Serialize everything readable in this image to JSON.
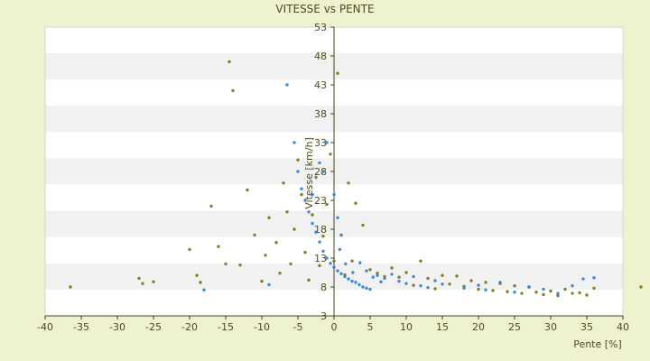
{
  "chart_data": {
    "type": "scatter",
    "title": "VITESSE vs PENTE",
    "xlabel": "Pente [%]",
    "ylabel": "Vitesse [km/h]",
    "xlim": [
      -40,
      40
    ],
    "ylim": [
      3,
      53
    ],
    "x_ticks": [
      "-40",
      "-35",
      "-30",
      "-25",
      "-20",
      "-15",
      "-10",
      "-5",
      "0",
      "5",
      "10",
      "15",
      "20",
      "25",
      "30",
      "35",
      "40"
    ],
    "y_ticks": [
      "3",
      "8",
      "13",
      "18",
      "23",
      "28",
      "33",
      "38",
      "43",
      "48",
      "53"
    ],
    "grid": "horizontal alternating bands",
    "legend": "none",
    "colors": {
      "series_1": "#7a7a12",
      "series_2": "#2f86d8",
      "background": "#eef2cf",
      "plot_bg": "#ffffff",
      "band_bg": "#f1f1f1"
    },
    "series": [
      {
        "color": "#7a7a12",
        "points": [
          [
            -36.5,
            8.0
          ],
          [
            -27.0,
            9.5
          ],
          [
            -26.5,
            8.6
          ],
          [
            -25.0,
            8.9
          ],
          [
            -20.0,
            14.5
          ],
          [
            -19.0,
            10.0
          ],
          [
            -18.5,
            8.8
          ],
          [
            -17.0,
            22.0
          ],
          [
            -16.0,
            15.0
          ],
          [
            -15.0,
            12.0
          ],
          [
            -14.5,
            47.0
          ],
          [
            -14.0,
            42.0
          ],
          [
            -13.0,
            11.8
          ],
          [
            -12.0,
            24.8
          ],
          [
            -11.0,
            17.0
          ],
          [
            -10.0,
            9.0
          ],
          [
            -9.5,
            13.5
          ],
          [
            -9.0,
            20.0
          ],
          [
            -8.0,
            15.7
          ],
          [
            -7.5,
            10.4
          ],
          [
            -7.0,
            26.0
          ],
          [
            -6.5,
            21.0
          ],
          [
            -6.0,
            12.0
          ],
          [
            -5.5,
            18.0
          ],
          [
            -5.0,
            30.0
          ],
          [
            -4.5,
            24.0
          ],
          [
            -4.0,
            14.0
          ],
          [
            -3.5,
            9.2
          ],
          [
            -3.0,
            20.5
          ],
          [
            -2.5,
            27.0
          ],
          [
            -2.0,
            11.7
          ],
          [
            -1.5,
            16.8
          ],
          [
            -1.0,
            22.3
          ],
          [
            -0.5,
            31.0
          ],
          [
            0.0,
            12.5
          ],
          [
            0.5,
            45.0
          ],
          [
            1.0,
            17.0
          ],
          [
            1.5,
            10.1
          ],
          [
            2.0,
            26.0
          ],
          [
            2.5,
            12.5
          ],
          [
            3.0,
            22.5
          ],
          [
            4.0,
            18.7
          ],
          [
            5.0,
            11.0
          ],
          [
            6.0,
            10.4
          ],
          [
            7.0,
            9.8
          ],
          [
            8.0,
            11.3
          ],
          [
            9.0,
            9.7
          ],
          [
            10.0,
            10.5
          ],
          [
            11.0,
            8.3
          ],
          [
            12.0,
            12.5
          ],
          [
            13.0,
            9.5
          ],
          [
            14.0,
            7.7
          ],
          [
            15.0,
            10.0
          ],
          [
            16.0,
            8.5
          ],
          [
            17.0,
            9.9
          ],
          [
            18.0,
            8.1
          ],
          [
            19.0,
            9.1
          ],
          [
            20.0,
            7.6
          ],
          [
            21.0,
            8.8
          ],
          [
            22.0,
            7.4
          ],
          [
            23.0,
            8.6
          ],
          [
            24.0,
            7.2
          ],
          [
            25.0,
            8.2
          ],
          [
            26.0,
            6.9
          ],
          [
            27.0,
            8.0
          ],
          [
            28.0,
            7.1
          ],
          [
            29.0,
            6.7
          ],
          [
            30.0,
            7.3
          ],
          [
            31.0,
            6.5
          ],
          [
            32.0,
            7.6
          ],
          [
            33.0,
            6.9
          ],
          [
            34.0,
            7.0
          ],
          [
            35.0,
            6.6
          ],
          [
            36.0,
            7.8
          ],
          [
            42.5,
            8.0
          ]
        ]
      },
      {
        "color": "#2f86d8",
        "points": [
          [
            -18.0,
            7.5
          ],
          [
            -9.0,
            8.4
          ],
          [
            -6.5,
            43.0
          ],
          [
            -5.5,
            33.0
          ],
          [
            -5.0,
            28.0
          ],
          [
            -4.5,
            25.0
          ],
          [
            -4.0,
            23.0
          ],
          [
            -3.5,
            21.0
          ],
          [
            -3.0,
            19.0
          ],
          [
            -2.5,
            17.5
          ],
          [
            -2.0,
            15.8
          ],
          [
            -1.5,
            14.2
          ],
          [
            -1.0,
            13.0
          ],
          [
            -0.5,
            12.1
          ],
          [
            0.0,
            11.4
          ],
          [
            0.5,
            10.8
          ],
          [
            1.0,
            10.3
          ],
          [
            1.5,
            9.8
          ],
          [
            2.0,
            9.4
          ],
          [
            2.5,
            9.0
          ],
          [
            3.0,
            8.8
          ],
          [
            3.5,
            8.4
          ],
          [
            4.0,
            8.0
          ],
          [
            4.5,
            7.8
          ],
          [
            5.0,
            7.6
          ],
          [
            6.0,
            10.0
          ],
          [
            7.0,
            9.5
          ],
          [
            8.0,
            10.2
          ],
          [
            9.0,
            9.0
          ],
          [
            10.0,
            8.6
          ],
          [
            11.0,
            9.8
          ],
          [
            12.0,
            8.2
          ],
          [
            13.0,
            7.9
          ],
          [
            14.0,
            9.1
          ],
          [
            15.0,
            8.5
          ],
          [
            18.0,
            7.8
          ],
          [
            20.0,
            8.3
          ],
          [
            21.0,
            7.5
          ],
          [
            23.0,
            8.8
          ],
          [
            25.0,
            7.1
          ],
          [
            27.0,
            8.0
          ],
          [
            29.0,
            7.6
          ],
          [
            31.0,
            6.9
          ],
          [
            33.0,
            8.2
          ],
          [
            34.5,
            9.4
          ],
          [
            36.0,
            9.6
          ],
          [
            -1.0,
            33.0
          ],
          [
            -1.5,
            28.0
          ],
          [
            0.0,
            24.0
          ],
          [
            0.5,
            20.0
          ],
          [
            1.0,
            17.0
          ],
          [
            -2.0,
            29.5
          ],
          [
            -3.0,
            24.0
          ],
          [
            0.8,
            14.5
          ],
          [
            1.6,
            12.0
          ],
          [
            2.6,
            10.5
          ],
          [
            3.6,
            12.2
          ],
          [
            4.5,
            10.8
          ],
          [
            5.4,
            9.7
          ],
          [
            6.5,
            8.9
          ]
        ]
      }
    ]
  }
}
